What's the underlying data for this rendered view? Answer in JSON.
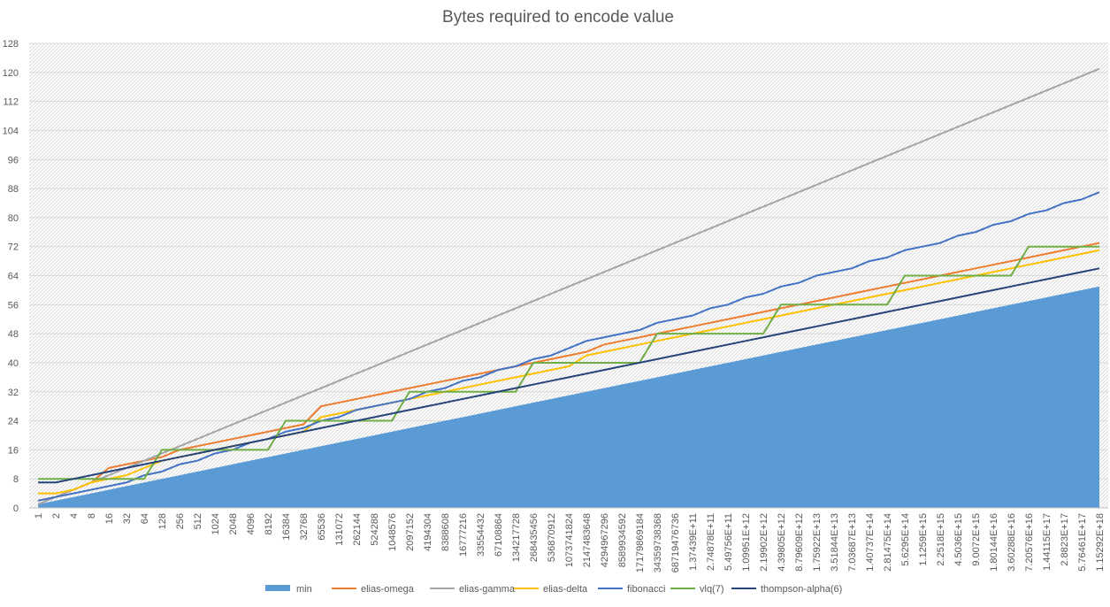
{
  "chart_data": {
    "type": "line",
    "title": "Bytes required to encode value",
    "xlabel": "",
    "ylabel": "",
    "ylim": [
      0,
      128
    ],
    "yticks": [
      0,
      8,
      16,
      24,
      32,
      40,
      48,
      56,
      64,
      72,
      80,
      88,
      96,
      104,
      112,
      120,
      128
    ],
    "grid": true,
    "legend_position": "bottom",
    "categories": [
      "1",
      "2",
      "4",
      "8",
      "16",
      "32",
      "64",
      "128",
      "256",
      "512",
      "1024",
      "2048",
      "4096",
      "8192",
      "16384",
      "32768",
      "65536",
      "131072",
      "262144",
      "524288",
      "1048576",
      "2097152",
      "4194304",
      "8388608",
      "16777216",
      "33554432",
      "67108864",
      "134217728",
      "268435456",
      "536870912",
      "1073741824",
      "2147483648",
      "4294967296",
      "8589934592",
      "17179869184",
      "34359738368",
      "68719476736",
      "1.37439E+11",
      "2.74878E+11",
      "5.49756E+11",
      "1.09951E+12",
      "2.19902E+12",
      "4.39805E+12",
      "8.79609E+12",
      "1.75922E+13",
      "3.51844E+13",
      "7.03687E+13",
      "1.40737E+14",
      "2.81475E+14",
      "5.6295E+14",
      "1.1259E+15",
      "2.2518E+15",
      "4.5036E+15",
      "9.0072E+15",
      "1.80144E+16",
      "3.60288E+16",
      "7.20576E+16",
      "1.44115E+17",
      "2.8823E+17",
      "5.76461E+17",
      "1.15292E+18"
    ],
    "series": [
      {
        "name": "min",
        "kind": "area",
        "color": "#5b9bd5",
        "values": [
          1,
          2,
          3,
          4,
          5,
          6,
          7,
          8,
          9,
          10,
          11,
          12,
          13,
          14,
          15,
          16,
          17,
          18,
          19,
          20,
          21,
          22,
          23,
          24,
          25,
          26,
          27,
          28,
          29,
          30,
          31,
          32,
          33,
          34,
          35,
          36,
          37,
          38,
          39,
          40,
          41,
          42,
          43,
          44,
          45,
          46,
          47,
          48,
          49,
          50,
          51,
          52,
          53,
          54,
          55,
          56,
          57,
          58,
          59,
          60,
          61
        ]
      },
      {
        "name": "elias-omega",
        "kind": "line",
        "color": "#ed7d31",
        "values": [
          2,
          3,
          5,
          7,
          11,
          12,
          13,
          14,
          16,
          17,
          18,
          19,
          20,
          21,
          22,
          23,
          28,
          29,
          30,
          31,
          32,
          33,
          34,
          35,
          36,
          37,
          38,
          39,
          40,
          41,
          42,
          43,
          45,
          46,
          47,
          48,
          49,
          50,
          51,
          52,
          53,
          54,
          55,
          56,
          57,
          58,
          59,
          60,
          61,
          62,
          63,
          64,
          65,
          66,
          67,
          68,
          69,
          70,
          71,
          72,
          73
        ]
      },
      {
        "name": "elias-gamma",
        "kind": "line",
        "color": "#a5a5a5",
        "values": [
          1,
          3,
          5,
          7,
          9,
          11,
          13,
          15,
          17,
          19,
          21,
          23,
          25,
          27,
          29,
          31,
          33,
          35,
          37,
          39,
          41,
          43,
          45,
          47,
          49,
          51,
          53,
          55,
          57,
          59,
          61,
          63,
          65,
          67,
          69,
          71,
          73,
          75,
          77,
          79,
          81,
          83,
          85,
          87,
          89,
          91,
          93,
          95,
          97,
          99,
          101,
          103,
          105,
          107,
          109,
          111,
          113,
          115,
          117,
          119,
          121
        ]
      },
      {
        "name": "elias-delta",
        "kind": "line",
        "color": "#ffc000",
        "values": [
          4,
          4,
          5,
          7,
          8,
          9,
          11,
          13,
          14,
          15,
          16,
          17,
          18,
          19,
          20,
          21,
          25,
          26,
          27,
          28,
          29,
          30,
          31,
          32,
          33,
          34,
          35,
          36,
          37,
          38,
          39,
          42,
          43,
          44,
          45,
          46,
          47,
          48,
          49,
          50,
          51,
          52,
          53,
          54,
          55,
          56,
          57,
          58,
          59,
          60,
          61,
          62,
          63,
          64,
          65,
          66,
          67,
          68,
          69,
          70,
          71
        ]
      },
      {
        "name": "fibonacci",
        "kind": "line",
        "color": "#4472c4",
        "values": [
          2,
          3,
          4,
          5,
          6,
          7,
          9,
          10,
          12,
          13,
          15,
          16,
          18,
          19,
          21,
          22,
          24,
          25,
          27,
          28,
          29,
          30,
          32,
          33,
          35,
          36,
          38,
          39,
          41,
          42,
          44,
          46,
          47,
          48,
          49,
          51,
          52,
          53,
          55,
          56,
          58,
          59,
          61,
          62,
          64,
          65,
          66,
          68,
          69,
          71,
          72,
          73,
          75,
          76,
          78,
          79,
          81,
          82,
          84,
          85,
          87
        ]
      },
      {
        "name": "vlq(7)",
        "kind": "line",
        "color": "#70ad47",
        "values": [
          8,
          8,
          8,
          8,
          8,
          8,
          8,
          16,
          16,
          16,
          16,
          16,
          16,
          16,
          24,
          24,
          24,
          24,
          24,
          24,
          24,
          32,
          32,
          32,
          32,
          32,
          32,
          32,
          40,
          40,
          40,
          40,
          40,
          40,
          40,
          48,
          48,
          48,
          48,
          48,
          48,
          48,
          56,
          56,
          56,
          56,
          56,
          56,
          56,
          64,
          64,
          64,
          64,
          64,
          64,
          64,
          72,
          72,
          72,
          72,
          72
        ]
      },
      {
        "name": "thompson-alpha(6)",
        "kind": "line",
        "color": "#264478",
        "values": [
          7,
          7,
          8,
          9,
          10,
          11,
          12,
          13,
          14,
          15,
          16,
          17,
          18,
          19,
          20,
          21,
          22,
          23,
          24,
          25,
          26,
          27,
          28,
          29,
          30,
          31,
          32,
          33,
          34,
          35,
          36,
          37,
          38,
          39,
          40,
          41,
          42,
          43,
          44,
          45,
          46,
          47,
          48,
          49,
          50,
          51,
          52,
          53,
          54,
          55,
          56,
          57,
          58,
          59,
          60,
          61,
          62,
          63,
          64,
          65,
          66
        ]
      }
    ]
  }
}
